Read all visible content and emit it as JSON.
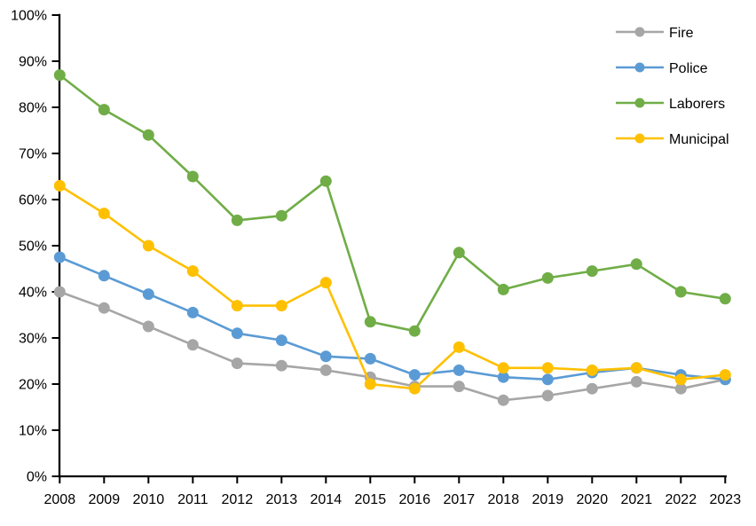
{
  "chart_data": {
    "type": "line",
    "title": "",
    "xlabel": "",
    "ylabel": "",
    "background": "#FFFFFF",
    "axis_color": "#000000",
    "grid": false,
    "ylim": [
      0,
      100
    ],
    "ytick_step": 10,
    "ytick_format": "percent",
    "y_tick_labels": [
      "0%",
      "10%",
      "20%",
      "30%",
      "40%",
      "50%",
      "60%",
      "70%",
      "80%",
      "90%",
      "100%"
    ],
    "categories": [
      "2008",
      "2009",
      "2010",
      "2011",
      "2012",
      "2013",
      "2014",
      "2015",
      "2016",
      "2017",
      "2018",
      "2019",
      "2020",
      "2021",
      "2022",
      "2023"
    ],
    "series": [
      {
        "name": "Fire",
        "color": "#A6A6A6",
        "marker": "circle",
        "values": [
          40,
          36.5,
          32.5,
          28.5,
          24.5,
          24,
          23,
          21.5,
          19.5,
          19.5,
          16.5,
          17.5,
          19,
          20.5,
          19,
          21
        ]
      },
      {
        "name": "Police",
        "color": "#5B9BD5",
        "marker": "circle",
        "values": [
          47.5,
          43.5,
          39.5,
          35.5,
          31,
          29.5,
          26,
          25.5,
          22,
          23,
          21.5,
          21,
          22.5,
          23.5,
          22,
          21
        ]
      },
      {
        "name": "Laborers",
        "color": "#70AD47",
        "marker": "circle",
        "values": [
          87,
          79.5,
          74,
          65,
          55.5,
          56.5,
          64,
          33.5,
          31.5,
          48.5,
          40.5,
          43,
          44.5,
          46,
          40,
          38.5
        ]
      },
      {
        "name": "Municipal",
        "color": "#FFC000",
        "marker": "circle",
        "values": [
          63,
          57,
          50,
          44.5,
          37,
          37,
          42,
          20,
          19,
          28,
          23.5,
          23.5,
          23,
          23.5,
          21,
          22
        ]
      }
    ],
    "legend": {
      "position": "top-right",
      "entries": [
        "Fire",
        "Police",
        "Laborers",
        "Municipal"
      ]
    }
  }
}
